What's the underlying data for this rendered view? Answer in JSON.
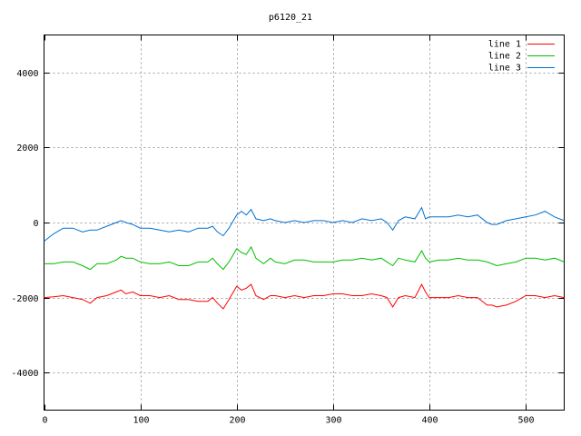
{
  "chart_data": {
    "type": "line",
    "title": "p6120_21",
    "xlabel": "",
    "ylabel": "",
    "xlim": [
      0,
      540
    ],
    "ylim": [
      -5000,
      5000
    ],
    "x_ticks": [
      0,
      100,
      200,
      300,
      400,
      500
    ],
    "y_ticks": [
      -4000,
      -2000,
      0,
      2000,
      4000
    ],
    "grid": true,
    "legend_position": "top-right",
    "x": [
      0,
      10,
      20,
      30,
      40,
      48,
      55,
      65,
      75,
      80,
      85,
      92,
      100,
      110,
      120,
      130,
      140,
      150,
      160,
      170,
      175,
      180,
      186,
      192,
      200,
      205,
      210,
      215,
      220,
      228,
      235,
      240,
      250,
      260,
      270,
      280,
      290,
      300,
      310,
      320,
      330,
      340,
      350,
      356,
      362,
      368,
      375,
      385,
      392,
      396,
      400,
      410,
      420,
      430,
      440,
      450,
      460,
      465,
      470,
      480,
      490,
      500,
      510,
      520,
      530,
      540
    ],
    "series": [
      {
        "name": "line 1",
        "color": "#ff0000",
        "values": [
          -2000,
          -1980,
          -1950,
          -2000,
          -2050,
          -2150,
          -2000,
          -1950,
          -1850,
          -1800,
          -1900,
          -1850,
          -1950,
          -1950,
          -2000,
          -1950,
          -2050,
          -2050,
          -2100,
          -2100,
          -2000,
          -2150,
          -2300,
          -2050,
          -1700,
          -1800,
          -1750,
          -1650,
          -1950,
          -2050,
          -1950,
          -1950,
          -2000,
          -1950,
          -2000,
          -1950,
          -1950,
          -1900,
          -1900,
          -1950,
          -1950,
          -1900,
          -1950,
          -2000,
          -2250,
          -2000,
          -1950,
          -2000,
          -1650,
          -1850,
          -2000,
          -2000,
          -2000,
          -1950,
          -2000,
          -2000,
          -2200,
          -2200,
          -2250,
          -2200,
          -2100,
          -1950,
          -1950,
          -2000,
          -1950,
          -2000
        ]
      },
      {
        "name": "line 2",
        "color": "#00c000",
        "values": [
          -1100,
          -1100,
          -1050,
          -1050,
          -1150,
          -1250,
          -1100,
          -1100,
          -1000,
          -900,
          -950,
          -950,
          -1050,
          -1100,
          -1100,
          -1050,
          -1150,
          -1150,
          -1050,
          -1050,
          -950,
          -1100,
          -1250,
          -1050,
          -700,
          -800,
          -850,
          -650,
          -950,
          -1100,
          -950,
          -1050,
          -1100,
          -1000,
          -1000,
          -1050,
          -1050,
          -1050,
          -1000,
          -1000,
          -950,
          -1000,
          -950,
          -1050,
          -1150,
          -950,
          -1000,
          -1050,
          -750,
          -950,
          -1050,
          -1000,
          -1000,
          -950,
          -1000,
          -1000,
          -1050,
          -1100,
          -1150,
          -1100,
          -1050,
          -950,
          -950,
          -1000,
          -950,
          -1050
        ]
      },
      {
        "name": "line 3",
        "color": "#0070d0",
        "values": [
          -500,
          -300,
          -150,
          -150,
          -250,
          -200,
          -200,
          -100,
          0,
          50,
          0,
          -50,
          -150,
          -150,
          -200,
          -250,
          -200,
          -250,
          -150,
          -150,
          -100,
          -250,
          -350,
          -150,
          200,
          300,
          200,
          350,
          100,
          50,
          100,
          50,
          0,
          50,
          0,
          50,
          50,
          0,
          50,
          0,
          100,
          50,
          100,
          0,
          -200,
          50,
          150,
          100,
          400,
          100,
          150,
          150,
          150,
          200,
          150,
          200,
          0,
          -50,
          -50,
          50,
          100,
          150,
          200,
          300,
          150,
          50
        ]
      }
    ]
  }
}
